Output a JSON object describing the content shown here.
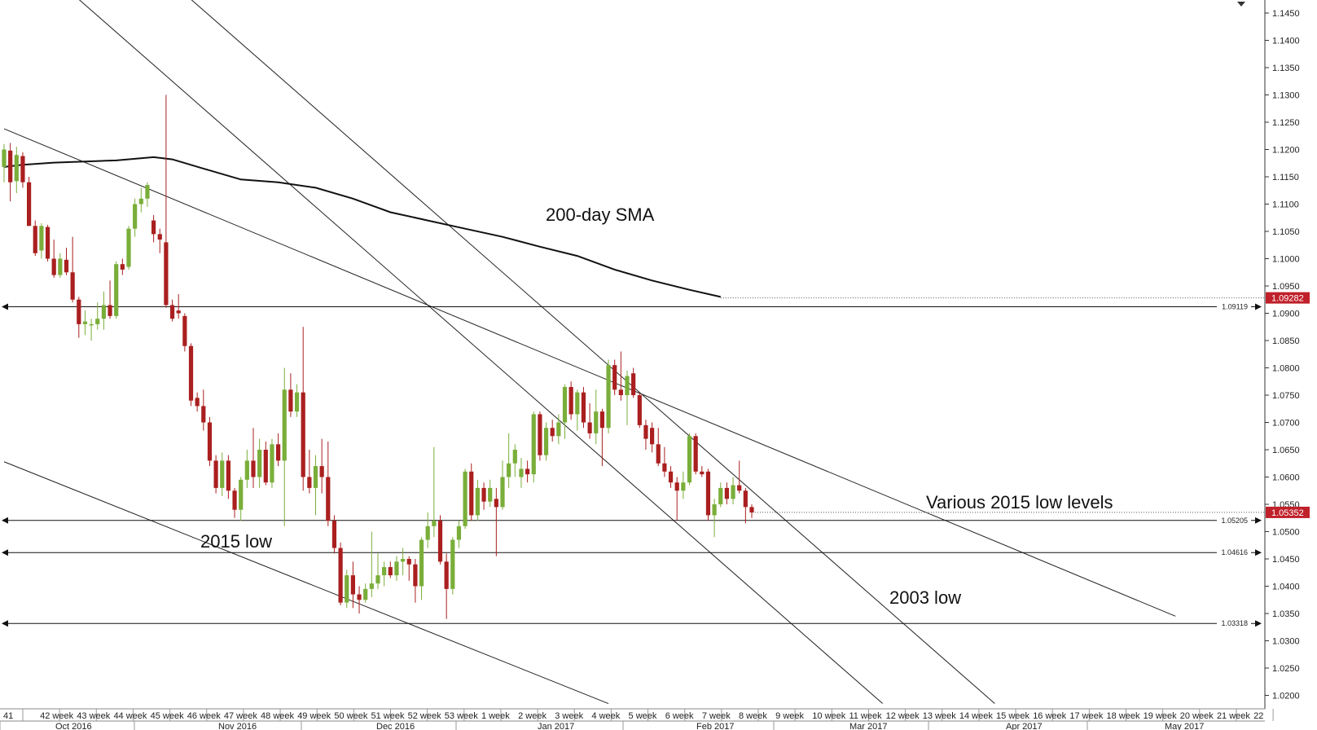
{
  "chart_data": {
    "type": "candlestick",
    "series_name": "",
    "ylim": [
      1.0175,
      1.1475
    ],
    "y_ticks": [
      "1.1450",
      "1.1400",
      "1.1350",
      "1.1300",
      "1.1250",
      "1.1200",
      "1.1150",
      "1.1100",
      "1.1050",
      "1.1000",
      "1.0950",
      "1.0900",
      "1.0850",
      "1.0800",
      "1.0750",
      "1.0700",
      "1.0650",
      "1.0600",
      "1.0550",
      "1.0500",
      "1.0450",
      "1.0400",
      "1.0350",
      "1.0300",
      "1.0250",
      "1.0200"
    ],
    "week_labels": [
      "41",
      "42 week",
      "43 week",
      "44 week",
      "45 week",
      "46 week",
      "47 week",
      "48 week",
      "49 week",
      "50 week",
      "51 week",
      "52 week",
      "53 week",
      "1 week",
      "2 week",
      "3 week",
      "4 week",
      "5 week",
      "6 week",
      "7 week",
      "8 week",
      "9 week",
      "10 week",
      "11 week",
      "12 week",
      "13 week",
      "14 week",
      "15 week",
      "16 week",
      "17 week",
      "18 week",
      "19 week",
      "20 week",
      "21 week",
      "22"
    ],
    "month_labels": [
      "Oct 2016",
      "Nov 2016",
      "Dec 2016",
      "Jan 2017",
      "Feb 2017",
      "Mar 2017",
      "Apr 2017",
      "May 2017"
    ],
    "annotations": [
      "200-day SMA",
      "Various 2015 low levels",
      "2015 low",
      "2003 low"
    ],
    "levels": [
      {
        "value": 1.09119,
        "label": "1.09119"
      },
      {
        "value": 1.05205,
        "label": "1.05205"
      },
      {
        "value": 1.04616,
        "label": "1.04616"
      },
      {
        "value": 1.03318,
        "label": "1.03318"
      }
    ],
    "badges": [
      {
        "value": 1.09282,
        "label": "1.09282"
      },
      {
        "value": 1.05352,
        "label": "1.05352"
      }
    ],
    "sma_200": [
      [
        0,
        1.1168
      ],
      [
        3,
        1.1172
      ],
      [
        8,
        1.1176
      ],
      [
        13,
        1.1178
      ],
      [
        18,
        1.118
      ],
      [
        24,
        1.1186
      ],
      [
        27,
        1.1182
      ],
      [
        32,
        1.1165
      ],
      [
        38,
        1.1145
      ],
      [
        44,
        1.114
      ],
      [
        50,
        1.113
      ],
      [
        56,
        1.111
      ],
      [
        62,
        1.1085
      ],
      [
        68,
        1.107
      ],
      [
        74,
        1.1055
      ],
      [
        80,
        1.104
      ],
      [
        86,
        1.1022
      ],
      [
        92,
        1.1005
      ],
      [
        98,
        1.098
      ],
      [
        104,
        1.096
      ],
      [
        110,
        1.0943
      ],
      [
        115,
        1.093
      ]
    ],
    "trendlines": [
      {
        "from": [
          0,
          1.1238
        ],
        "to": [
          188,
          1.0345
        ]
      },
      {
        "from": [
          0,
          1.0628
        ],
        "to": [
          97,
          1.0185
        ]
      },
      {
        "from": [
          12,
          1.1475
        ],
        "to": [
          141,
          1.0185
        ]
      },
      {
        "from": [
          30,
          1.1475
        ],
        "to": [
          159,
          1.0185
        ]
      }
    ],
    "candles": [
      {
        "o": 1.1168,
        "h": 1.121,
        "l": 1.114,
        "c": 1.12
      },
      {
        "o": 1.1198,
        "h": 1.1212,
        "l": 1.1105,
        "c": 1.114
      },
      {
        "o": 1.1142,
        "h": 1.1205,
        "l": 1.112,
        "c": 1.119
      },
      {
        "o": 1.1188,
        "h": 1.1195,
        "l": 1.113,
        "c": 1.114
      },
      {
        "o": 1.114,
        "h": 1.115,
        "l": 1.106,
        "c": 1.106
      },
      {
        "o": 1.106,
        "h": 1.107,
        "l": 1.1005,
        "c": 1.101
      },
      {
        "o": 1.1015,
        "h": 1.1065,
        "l": 1.1,
        "c": 1.106
      },
      {
        "o": 1.1058,
        "h": 1.1062,
        "l": 1.0995,
        "c": 1.1
      },
      {
        "o": 1.1,
        "h": 1.1035,
        "l": 1.0965,
        "c": 1.097
      },
      {
        "o": 1.097,
        "h": 1.101,
        "l": 1.0965,
        "c": 1.1
      },
      {
        "o": 1.0998,
        "h": 1.102,
        "l": 1.097,
        "c": 1.0975
      },
      {
        "o": 1.0975,
        "h": 1.104,
        "l": 1.092,
        "c": 1.0925
      },
      {
        "o": 1.0925,
        "h": 1.093,
        "l": 1.0855,
        "c": 1.088
      },
      {
        "o": 1.088,
        "h": 1.0905,
        "l": 1.086,
        "c": 1.0885
      },
      {
        "o": 1.088,
        "h": 1.089,
        "l": 1.085,
        "c": 1.088
      },
      {
        "o": 1.088,
        "h": 1.092,
        "l": 1.087,
        "c": 1.089
      },
      {
        "o": 1.089,
        "h": 1.094,
        "l": 1.087,
        "c": 1.0915
      },
      {
        "o": 1.0915,
        "h": 1.096,
        "l": 1.089,
        "c": 1.0895
      },
      {
        "o": 1.0895,
        "h": 1.0995,
        "l": 1.089,
        "c": 1.099
      },
      {
        "o": 1.099,
        "h": 1.1,
        "l": 1.097,
        "c": 1.098
      },
      {
        "o": 1.0985,
        "h": 1.106,
        "l": 1.098,
        "c": 1.1055
      },
      {
        "o": 1.1055,
        "h": 1.111,
        "l": 1.104,
        "c": 1.11
      },
      {
        "o": 1.11,
        "h": 1.113,
        "l": 1.1085,
        "c": 1.111
      },
      {
        "o": 1.111,
        "h": 1.114,
        "l": 1.1095,
        "c": 1.1135
      },
      {
        "o": 1.107,
        "h": 1.108,
        "l": 1.103,
        "c": 1.1045
      },
      {
        "o": 1.1045,
        "h": 1.1055,
        "l": 1.101,
        "c": 1.1035
      },
      {
        "o": 1.103,
        "h": 1.13,
        "l": 1.091,
        "c": 1.0915
      },
      {
        "o": 1.0915,
        "h": 1.0925,
        "l": 1.0885,
        "c": 1.089
      },
      {
        "o": 1.0905,
        "h": 1.0935,
        "l": 1.089,
        "c": 1.09
      },
      {
        "o": 1.0895,
        "h": 1.09,
        "l": 1.083,
        "c": 1.084
      },
      {
        "o": 1.084,
        "h": 1.0845,
        "l": 1.073,
        "c": 1.074
      },
      {
        "o": 1.0745,
        "h": 1.0755,
        "l": 1.072,
        "c": 1.073
      },
      {
        "o": 1.073,
        "h": 1.076,
        "l": 1.0685,
        "c": 1.07
      },
      {
        "o": 1.07,
        "h": 1.071,
        "l": 1.062,
        "c": 1.063
      },
      {
        "o": 1.063,
        "h": 1.064,
        "l": 1.057,
        "c": 1.058
      },
      {
        "o": 1.058,
        "h": 1.0645,
        "l": 1.0565,
        "c": 1.063
      },
      {
        "o": 1.063,
        "h": 1.064,
        "l": 1.056,
        "c": 1.0575
      },
      {
        "o": 1.0575,
        "h": 1.058,
        "l": 1.0525,
        "c": 1.054
      },
      {
        "o": 1.054,
        "h": 1.06,
        "l": 1.052,
        "c": 1.0595
      },
      {
        "o": 1.0595,
        "h": 1.065,
        "l": 1.058,
        "c": 1.063
      },
      {
        "o": 1.063,
        "h": 1.069,
        "l": 1.058,
        "c": 1.06
      },
      {
        "o": 1.06,
        "h": 1.067,
        "l": 1.058,
        "c": 1.065
      },
      {
        "o": 1.065,
        "h": 1.0665,
        "l": 1.0585,
        "c": 1.059
      },
      {
        "o": 1.059,
        "h": 1.067,
        "l": 1.058,
        "c": 1.066
      },
      {
        "o": 1.066,
        "h": 1.068,
        "l": 1.062,
        "c": 1.063
      },
      {
        "o": 1.063,
        "h": 1.08,
        "l": 1.051,
        "c": 1.076
      },
      {
        "o": 1.076,
        "h": 1.079,
        "l": 1.071,
        "c": 1.072
      },
      {
        "o": 1.072,
        "h": 1.077,
        "l": 1.071,
        "c": 1.0755
      },
      {
        "o": 1.0755,
        "h": 1.0875,
        "l": 1.0575,
        "c": 1.06
      },
      {
        "o": 1.06,
        "h": 1.065,
        "l": 1.057,
        "c": 1.058
      },
      {
        "o": 1.058,
        "h": 1.064,
        "l": 1.053,
        "c": 1.062
      },
      {
        "o": 1.062,
        "h": 1.067,
        "l": 1.057,
        "c": 1.06
      },
      {
        "o": 1.06,
        "h": 1.0665,
        "l": 1.051,
        "c": 1.052
      },
      {
        "o": 1.052,
        "h": 1.053,
        "l": 1.046,
        "c": 1.047
      },
      {
        "o": 1.047,
        "h": 1.048,
        "l": 1.0365,
        "c": 1.037
      },
      {
        "o": 1.037,
        "h": 1.043,
        "l": 1.036,
        "c": 1.042
      },
      {
        "o": 1.042,
        "h": 1.0445,
        "l": 1.036,
        "c": 1.0385
      },
      {
        "o": 1.0385,
        "h": 1.04,
        "l": 1.035,
        "c": 1.0375
      },
      {
        "o": 1.0375,
        "h": 1.0405,
        "l": 1.037,
        "c": 1.0395
      },
      {
        "o": 1.0395,
        "h": 1.05,
        "l": 1.038,
        "c": 1.0405
      },
      {
        "o": 1.0405,
        "h": 1.046,
        "l": 1.0395,
        "c": 1.042
      },
      {
        "o": 1.042,
        "h": 1.0445,
        "l": 1.04,
        "c": 1.0435
      },
      {
        "o": 1.0435,
        "h": 1.0445,
        "l": 1.0415,
        "c": 1.042
      },
      {
        "o": 1.042,
        "h": 1.0455,
        "l": 1.041,
        "c": 1.0445
      },
      {
        "o": 1.0445,
        "h": 1.047,
        "l": 1.042,
        "c": 1.045
      },
      {
        "o": 1.045,
        "h": 1.0455,
        "l": 1.041,
        "c": 1.044
      },
      {
        "o": 1.044,
        "h": 1.045,
        "l": 1.037,
        "c": 1.04
      },
      {
        "o": 1.04,
        "h": 1.049,
        "l": 1.0375,
        "c": 1.0485
      },
      {
        "o": 1.0485,
        "h": 1.0535,
        "l": 1.047,
        "c": 1.051
      },
      {
        "o": 1.051,
        "h": 1.0655,
        "l": 1.049,
        "c": 1.052
      },
      {
        "o": 1.052,
        "h": 1.053,
        "l": 1.044,
        "c": 1.0445
      },
      {
        "o": 1.0445,
        "h": 1.046,
        "l": 1.034,
        "c": 1.0395
      },
      {
        "o": 1.0395,
        "h": 1.049,
        "l": 1.0385,
        "c": 1.0485
      },
      {
        "o": 1.0485,
        "h": 1.052,
        "l": 1.047,
        "c": 1.051
      },
      {
        "o": 1.051,
        "h": 1.0615,
        "l": 1.0505,
        "c": 1.061
      },
      {
        "o": 1.061,
        "h": 1.0625,
        "l": 1.052,
        "c": 1.053
      },
      {
        "o": 1.053,
        "h": 1.0595,
        "l": 1.052,
        "c": 1.058
      },
      {
        "o": 1.058,
        "h": 1.059,
        "l": 1.054,
        "c": 1.0555
      },
      {
        "o": 1.0555,
        "h": 1.0595,
        "l": 1.0545,
        "c": 1.058
      },
      {
        "o": 1.056,
        "h": 1.058,
        "l": 1.0455,
        "c": 1.0545
      },
      {
        "o": 1.0545,
        "h": 1.063,
        "l": 1.054,
        "c": 1.06
      },
      {
        "o": 1.06,
        "h": 1.068,
        "l": 1.058,
        "c": 1.0625
      },
      {
        "o": 1.0625,
        "h": 1.066,
        "l": 1.06,
        "c": 1.065
      },
      {
        "o": 1.06,
        "h": 1.0635,
        "l": 1.058,
        "c": 1.0615
      },
      {
        "o": 1.0615,
        "h": 1.063,
        "l": 1.059,
        "c": 1.0605
      },
      {
        "o": 1.0605,
        "h": 1.072,
        "l": 1.059,
        "c": 1.0715
      },
      {
        "o": 1.0715,
        "h": 1.072,
        "l": 1.063,
        "c": 1.064
      },
      {
        "o": 1.064,
        "h": 1.07,
        "l": 1.063,
        "c": 1.069
      },
      {
        "o": 1.069,
        "h": 1.0705,
        "l": 1.0665,
        "c": 1.0675
      },
      {
        "o": 1.0675,
        "h": 1.0715,
        "l": 1.066,
        "c": 1.07
      },
      {
        "o": 1.07,
        "h": 1.077,
        "l": 1.067,
        "c": 1.0765
      },
      {
        "o": 1.0765,
        "h": 1.0775,
        "l": 1.0705,
        "c": 1.0715
      },
      {
        "o": 1.0715,
        "h": 1.076,
        "l": 1.0685,
        "c": 1.0755
      },
      {
        "o": 1.0755,
        "h": 1.0765,
        "l": 1.069,
        "c": 1.07
      },
      {
        "o": 1.07,
        "h": 1.0735,
        "l": 1.067,
        "c": 1.068
      },
      {
        "o": 1.068,
        "h": 1.076,
        "l": 1.066,
        "c": 1.072
      },
      {
        "o": 1.072,
        "h": 1.0725,
        "l": 1.062,
        "c": 1.069
      },
      {
        "o": 1.069,
        "h": 1.0815,
        "l": 1.068,
        "c": 1.0805
      },
      {
        "o": 1.0805,
        "h": 1.0815,
        "l": 1.075,
        "c": 1.076
      },
      {
        "o": 1.076,
        "h": 1.083,
        "l": 1.074,
        "c": 1.075
      },
      {
        "o": 1.075,
        "h": 1.0795,
        "l": 1.0695,
        "c": 1.0785
      },
      {
        "o": 1.079,
        "h": 1.08,
        "l": 1.0745,
        "c": 1.075
      },
      {
        "o": 1.075,
        "h": 1.0755,
        "l": 1.069,
        "c": 1.0695
      },
      {
        "o": 1.0695,
        "h": 1.0705,
        "l": 1.065,
        "c": 1.067
      },
      {
        "o": 1.069,
        "h": 1.07,
        "l": 1.0645,
        "c": 1.066
      },
      {
        "o": 1.066,
        "h": 1.069,
        "l": 1.062,
        "c": 1.0625
      },
      {
        "o": 1.0625,
        "h": 1.0655,
        "l": 1.06,
        "c": 1.061
      },
      {
        "o": 1.061,
        "h": 1.062,
        "l": 1.058,
        "c": 1.059
      },
      {
        "o": 1.059,
        "h": 1.06,
        "l": 1.052,
        "c": 1.0575
      },
      {
        "o": 1.0575,
        "h": 1.061,
        "l": 1.056,
        "c": 1.059
      },
      {
        "o": 1.059,
        "h": 1.068,
        "l": 1.0585,
        "c": 1.0675
      },
      {
        "o": 1.0675,
        "h": 1.068,
        "l": 1.0605,
        "c": 1.061
      },
      {
        "o": 1.061,
        "h": 1.062,
        "l": 1.06,
        "c": 1.0605
      },
      {
        "o": 1.061,
        "h": 1.0615,
        "l": 1.052,
        "c": 1.053
      },
      {
        "o": 1.053,
        "h": 1.056,
        "l": 1.049,
        "c": 1.055
      },
      {
        "o": 1.055,
        "h": 1.059,
        "l": 1.0545,
        "c": 1.058
      },
      {
        "o": 1.058,
        "h": 1.059,
        "l": 1.055,
        "c": 1.056
      },
      {
        "o": 1.056,
        "h": 1.06,
        "l": 1.055,
        "c": 1.0585
      },
      {
        "o": 1.0585,
        "h": 1.063,
        "l": 1.057,
        "c": 1.0575
      },
      {
        "o": 1.0575,
        "h": 1.058,
        "l": 1.0515,
        "c": 1.0545
      },
      {
        "o": 1.0545,
        "h": 1.055,
        "l": 1.0525,
        "c": 1.0535
      }
    ],
    "colors": {
      "up": "#7aae3a",
      "down": "#aa1f1f",
      "sma": "#111111",
      "badge": "#c0202a",
      "grid": "#cccccc"
    }
  }
}
